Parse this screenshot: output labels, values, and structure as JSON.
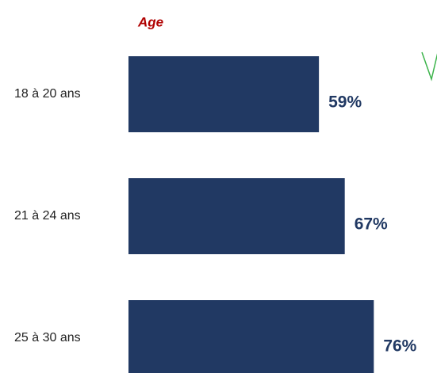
{
  "chart_data": {
    "type": "bar",
    "orientation": "horizontal",
    "title": "Age",
    "categories": [
      "18 à 20 ans",
      "21 à 24 ans",
      "25 à 30 ans"
    ],
    "values": [
      59,
      67,
      76
    ],
    "value_labels": [
      "59%",
      "67%",
      "76%"
    ],
    "color": "#213963"
  }
}
